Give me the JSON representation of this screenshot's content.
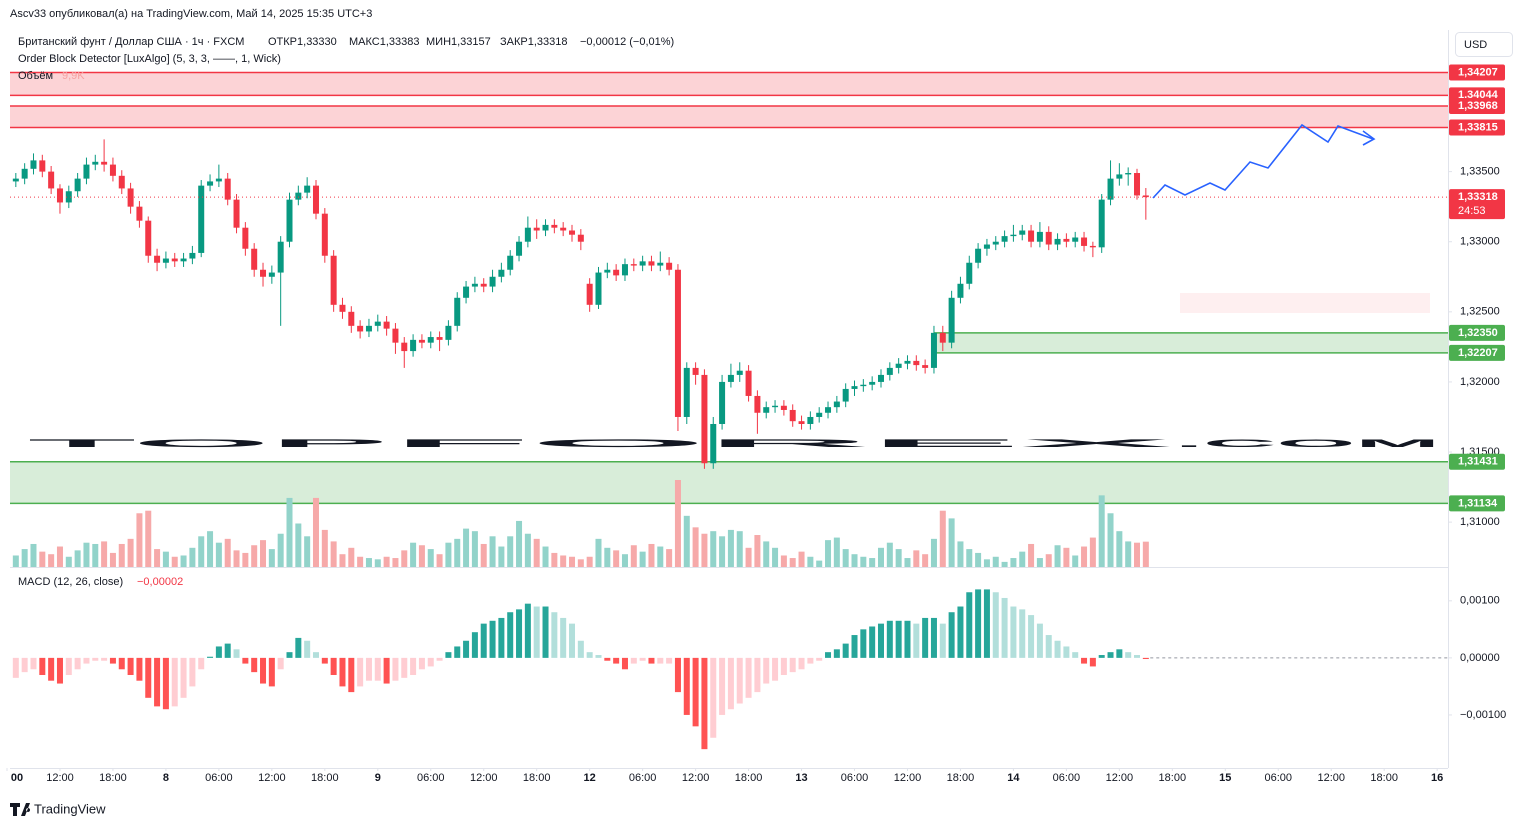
{
  "header": "Ascv33 опубликовал(а) на TradingView.com, Май 14, 2025 15:35 UTC+3",
  "currency": "USD",
  "brand": "TradingView",
  "watermark": {
    "parts": [
      "TOP",
      "FOREX",
      ".COM"
    ]
  },
  "chart_data": {
    "type": "candlestick",
    "title": "Британский фунт / Доллар США · 1ч · FXCM",
    "ohlc_legend": [
      "ОТКР1,33330",
      "МАКС1,33383",
      "МИН1,33157",
      "ЗАКР1,33318"
    ],
    "change_label": "−0,00012 (−0,01%)",
    "indicator": "Order Block Detector [LuxAlgo] (5, 3, 3, ——, 1, Wick)",
    "up_color": "#089981",
    "down_color": "#f23645",
    "xlim": [
      0,
      163
    ],
    "xticks": [
      {
        "value": 0,
        "label": "00"
      },
      {
        "value": 6,
        "label": "12:00"
      },
      {
        "value": 12,
        "label": "18:00"
      },
      {
        "value": 18,
        "label": "8"
      },
      {
        "value": 24,
        "label": "06:00"
      },
      {
        "value": 30,
        "label": "12:00"
      },
      {
        "value": 36,
        "label": "18:00"
      },
      {
        "value": 42,
        "label": "9"
      },
      {
        "value": 48,
        "label": "06:00"
      },
      {
        "value": 54,
        "label": "12:00"
      },
      {
        "value": 60,
        "label": "18:00"
      },
      {
        "value": 66,
        "label": "12"
      },
      {
        "value": 72,
        "label": "06:00"
      },
      {
        "value": 78,
        "label": "12:00"
      },
      {
        "value": 84,
        "label": "18:00"
      },
      {
        "value": 90,
        "label": "13"
      },
      {
        "value": 96,
        "label": "06:00"
      },
      {
        "value": 102,
        "label": "12:00"
      },
      {
        "value": 108,
        "label": "18:00"
      },
      {
        "value": 114,
        "label": "14"
      },
      {
        "value": 120,
        "label": "06:00"
      },
      {
        "value": 126,
        "label": "12:00"
      },
      {
        "value": 132,
        "label": "18:00"
      },
      {
        "value": 138,
        "label": "15"
      },
      {
        "value": 144,
        "label": "06:00"
      },
      {
        "value": 150,
        "label": "12:00"
      },
      {
        "value": 156,
        "label": "18:00"
      },
      {
        "value": 162,
        "label": "16"
      }
    ],
    "ylim": [
      1.3068,
      1.3451
    ],
    "yticks": [
      {
        "value": 1.335,
        "label": "1,33500"
      },
      {
        "value": 1.33,
        "label": "1,33000"
      },
      {
        "value": 1.325,
        "label": "1,32500"
      },
      {
        "value": 1.32,
        "label": "1,32000"
      },
      {
        "value": 1.315,
        "label": "1,31500"
      },
      {
        "value": 1.31,
        "label": "1,31000"
      }
    ],
    "grid": false,
    "open": [
      1.334,
      1.3343,
      1.3345,
      1.3352,
      1.3358,
      1.335,
      1.3338,
      1.3328,
      1.3336,
      1.3345,
      1.3355,
      1.3357,
      1.3355,
      1.3347,
      1.3338,
      1.3325,
      1.3315,
      1.329,
      1.3285,
      1.3288,
      1.3286,
      1.3288,
      1.3292,
      1.334,
      1.3343,
      1.3345,
      1.333,
      1.331,
      1.3295,
      1.328,
      1.3275,
      1.3278,
      1.33,
      1.333,
      1.3335,
      1.334,
      1.332,
      1.329,
      1.3255,
      1.325,
      1.324,
      1.3236,
      1.324,
      1.3243,
      1.3238,
      1.3228,
      1.3222,
      1.323,
      1.3228,
      1.3232,
      1.323,
      1.324,
      1.326,
      1.3268,
      1.327,
      1.3268,
      1.3275,
      1.328,
      1.329,
      1.33,
      1.331,
      1.3308,
      1.3312,
      1.331,
      1.3308,
      1.3305,
      1.327,
      1.3255,
      1.3278,
      1.328,
      1.3276,
      1.3284,
      1.3283,
      1.3286,
      1.3283,
      1.3285,
      1.328,
      1.3175,
      1.321,
      1.3205,
      1.3142,
      1.317,
      1.32,
      1.3205,
      1.3208,
      1.319,
      1.3178,
      1.3182,
      1.3183,
      1.318,
      1.3172,
      1.317,
      1.3175,
      1.3178,
      1.3182,
      1.3186,
      1.3195,
      1.3197,
      1.3198,
      1.32,
      1.3205,
      1.321,
      1.3213,
      1.3215,
      1.3212,
      1.321,
      1.3235,
      1.3228,
      1.326,
      1.327,
      1.3285,
      1.3295,
      1.3298,
      1.33,
      1.3304,
      1.3305,
      1.3308,
      1.33,
      1.3307,
      1.3298,
      1.3302,
      1.33,
      1.3303,
      1.3297,
      1.3296,
      1.333,
      1.3345,
      1.3348,
      1.3349,
      1.3333
    ],
    "high": [
      1.3348,
      1.3349,
      1.3356,
      1.3363,
      1.3362,
      1.3354,
      1.3341,
      1.334,
      1.3349,
      1.336,
      1.3362,
      1.3373,
      1.336,
      1.3351,
      1.3342,
      1.3329,
      1.3318,
      1.3295,
      1.3293,
      1.3292,
      1.3292,
      1.3297,
      1.3344,
      1.3348,
      1.3355,
      1.3349,
      1.3334,
      1.3314,
      1.3299,
      1.3285,
      1.3283,
      1.3304,
      1.3335,
      1.334,
      1.3346,
      1.3344,
      1.3324,
      1.3294,
      1.326,
      1.3254,
      1.3244,
      1.3245,
      1.3248,
      1.3247,
      1.3242,
      1.3232,
      1.3234,
      1.3234,
      1.3236,
      1.3236,
      1.3244,
      1.3264,
      1.3272,
      1.3275,
      1.3274,
      1.328,
      1.3285,
      1.3294,
      1.3304,
      1.3318,
      1.3316,
      1.3316,
      1.3316,
      1.3314,
      1.3312,
      1.3309,
      1.3274,
      1.3282,
      1.3285,
      1.3284,
      1.3288,
      1.3288,
      1.329,
      1.329,
      1.3293,
      1.3289,
      1.3284,
      1.3214,
      1.3214,
      1.3209,
      1.3175,
      1.3205,
      1.3213,
      1.3214,
      1.3212,
      1.3194,
      1.3186,
      1.3187,
      1.3187,
      1.3184,
      1.3176,
      1.3179,
      1.3182,
      1.3186,
      1.319,
      1.3199,
      1.3201,
      1.3202,
      1.3204,
      1.3209,
      1.3214,
      1.3217,
      1.3219,
      1.3219,
      1.3216,
      1.324,
      1.324,
      1.3265,
      1.3275,
      1.329,
      1.3299,
      1.3302,
      1.3304,
      1.3308,
      1.3312,
      1.3312,
      1.3312,
      1.3314,
      1.3311,
      1.3306,
      1.3306,
      1.3307,
      1.3307,
      1.33,
      1.3334,
      1.3358,
      1.3356,
      1.3353,
      1.3352,
      1.33383
    ],
    "low": [
      1.3336,
      1.3339,
      1.3341,
      1.3348,
      1.3346,
      1.3334,
      1.332,
      1.3324,
      1.3332,
      1.3341,
      1.3351,
      1.335,
      1.3343,
      1.3334,
      1.332,
      1.331,
      1.3285,
      1.3279,
      1.3281,
      1.3282,
      1.3282,
      1.3284,
      1.3289,
      1.3336,
      1.3339,
      1.3326,
      1.3306,
      1.329,
      1.3275,
      1.3268,
      1.327,
      1.324,
      1.3296,
      1.3326,
      1.3331,
      1.3316,
      1.3285,
      1.325,
      1.3245,
      1.3235,
      1.3231,
      1.3232,
      1.3236,
      1.3233,
      1.322,
      1.321,
      1.3218,
      1.3224,
      1.3224,
      1.3222,
      1.3226,
      1.3236,
      1.3256,
      1.3264,
      1.3264,
      1.3264,
      1.3271,
      1.3276,
      1.3286,
      1.3296,
      1.3302,
      1.3304,
      1.3306,
      1.3304,
      1.33,
      1.3294,
      1.325,
      1.3252,
      1.3274,
      1.3272,
      1.3272,
      1.3279,
      1.3279,
      1.3279,
      1.3279,
      1.3276,
      1.3165,
      1.317,
      1.3198,
      1.3138,
      1.3138,
      1.3166,
      1.3196,
      1.32,
      1.3186,
      1.3163,
      1.3174,
      1.3178,
      1.3176,
      1.3168,
      1.3166,
      1.3166,
      1.3171,
      1.3174,
      1.3178,
      1.3182,
      1.319,
      1.3193,
      1.3194,
      1.3196,
      1.3201,
      1.3206,
      1.3209,
      1.3208,
      1.3206,
      1.3206,
      1.3222,
      1.3224,
      1.3256,
      1.3266,
      1.3281,
      1.329,
      1.3294,
      1.3296,
      1.33,
      1.3301,
      1.3296,
      1.3296,
      1.3294,
      1.3294,
      1.3296,
      1.3296,
      1.3293,
      1.3289,
      1.3292,
      1.3326,
      1.334,
      1.334,
      1.333,
      1.33157
    ],
    "close": [
      1.3343,
      1.3345,
      1.3352,
      1.3358,
      1.335,
      1.3338,
      1.3328,
      1.3336,
      1.3345,
      1.3355,
      1.3357,
      1.3355,
      1.3347,
      1.3338,
      1.3325,
      1.3315,
      1.329,
      1.3285,
      1.3288,
      1.3286,
      1.3288,
      1.3292,
      1.334,
      1.3343,
      1.3345,
      1.333,
      1.331,
      1.3295,
      1.328,
      1.3275,
      1.3278,
      1.33,
      1.333,
      1.3335,
      1.334,
      1.332,
      1.329,
      1.3255,
      1.325,
      1.324,
      1.3236,
      1.324,
      1.3243,
      1.3238,
      1.3228,
      1.3222,
      1.323,
      1.3228,
      1.3232,
      1.323,
      1.324,
      1.326,
      1.3268,
      1.327,
      1.3268,
      1.3275,
      1.328,
      1.329,
      1.33,
      1.331,
      1.3308,
      1.3312,
      1.331,
      1.3308,
      1.3305,
      1.33,
      1.3255,
      1.3278,
      1.328,
      1.3276,
      1.3284,
      1.3283,
      1.3286,
      1.3283,
      1.3285,
      1.328,
      1.3175,
      1.321,
      1.3205,
      1.3142,
      1.317,
      1.32,
      1.3205,
      1.3208,
      1.319,
      1.3178,
      1.3182,
      1.3183,
      1.318,
      1.3172,
      1.317,
      1.3175,
      1.3178,
      1.3182,
      1.3186,
      1.3195,
      1.3197,
      1.3198,
      1.32,
      1.3205,
      1.321,
      1.3213,
      1.3215,
      1.3212,
      1.321,
      1.3235,
      1.3228,
      1.326,
      1.327,
      1.3285,
      1.3295,
      1.3298,
      1.33,
      1.3304,
      1.3305,
      1.3308,
      1.33,
      1.3307,
      1.3298,
      1.3302,
      1.33,
      1.3303,
      1.3297,
      1.3296,
      1.333,
      1.3345,
      1.3348,
      1.3349,
      1.3333,
      1.33318
    ],
    "last_price": {
      "label": "1,33318",
      "countdown": "24:53"
    },
    "order_blocks": [
      {
        "color": "#f23645",
        "start": 0,
        "top": {
          "value": 1.34207,
          "label": "1,34207"
        },
        "bottom": {
          "value": 1.34044,
          "label": "1,34044"
        }
      },
      {
        "color": "#f23645",
        "start": 0,
        "top": {
          "value": 1.33968,
          "label": "1,33968"
        },
        "bottom": {
          "value": 1.33815,
          "label": "1,33815"
        }
      },
      {
        "color": "#4caf50",
        "start": 105,
        "top": {
          "value": 1.3235,
          "label": "1,32350"
        },
        "bottom": {
          "value": 1.32207,
          "label": "1,32207"
        }
      },
      {
        "color": "#4caf50",
        "start": 0,
        "top": {
          "value": 1.31431,
          "label": "1,31431"
        },
        "bottom": {
          "value": 1.31134,
          "label": "1,31134"
        }
      }
    ],
    "volume": {
      "name": "Объём",
      "last_label": "9,9K",
      "up_color": "#92d3ca",
      "down_color": "#f6a9a9",
      "values": [
        3000,
        4500,
        7000,
        9000,
        6000,
        5000,
        8000,
        4000,
        6500,
        9500,
        9000,
        10000,
        5500,
        9000,
        11000,
        21000,
        22000,
        7000,
        6000,
        4000,
        4500,
        7500,
        12000,
        14000,
        9500,
        11000,
        6500,
        5500,
        8500,
        10500,
        7000,
        13000,
        27000,
        17000,
        12000,
        27000,
        14500,
        10000,
        5000,
        7500,
        4000,
        3500,
        3000,
        4000,
        3500,
        6500,
        9500,
        8500,
        7000,
        5000,
        9500,
        11000,
        15000,
        14000,
        9000,
        12000,
        8000,
        12000,
        18000,
        13000,
        11000,
        8000,
        5500,
        4500,
        4000,
        3000,
        4000,
        11000,
        7500,
        6500,
        5000,
        8500,
        6000,
        9000,
        8000,
        7000,
        34000,
        20000,
        15500,
        13000,
        14000,
        12000,
        14500,
        14000,
        7500,
        12500,
        10000,
        7500,
        4500,
        3500,
        6000,
        4000,
        2500,
        10500,
        11500,
        7000,
        5000,
        4000,
        3500,
        7500,
        9500,
        7000,
        3500,
        6500,
        5000,
        11000,
        22000,
        19000,
        10000,
        7000,
        5500,
        3000,
        4000,
        2000,
        3500,
        6000,
        9000,
        3500,
        5000,
        8500,
        7500,
        4500,
        8000,
        11500,
        28000,
        21000,
        14000,
        10000,
        9500,
        9900
      ]
    },
    "macd": {
      "name": "MACD (12, 26, close)",
      "last_label": "−0,00002",
      "ylim": [
        -0.00193,
        0.00154
      ],
      "yticks": [
        {
          "value": 0.001,
          "label": "0,00100"
        },
        {
          "value": 0,
          "label": "0,00000"
        },
        {
          "value": -0.001,
          "label": "−0,00100"
        }
      ],
      "colors": [
        "#26a69a",
        "#b2dfdb",
        "#ffcdd2",
        "#ff5252"
      ],
      "values": [
        -0.00055,
        -0.00035,
        -0.00025,
        -0.0002,
        -0.0003,
        -0.0004,
        -0.00045,
        -0.0003,
        -0.0002,
        -0.0001,
        -5e-05,
        -5e-05,
        -0.0001,
        -0.0002,
        -0.0003,
        -0.0004,
        -0.0007,
        -0.00085,
        -0.0009,
        -0.00085,
        -0.0007,
        -0.0005,
        -0.0002,
        2e-05,
        0.0002,
        0.00025,
        0.00015,
        -0.0001,
        -0.00025,
        -0.00045,
        -0.0005,
        -0.0002,
        0.0001,
        0.00035,
        0.0003,
        0.0001,
        -0.0001,
        -0.0003,
        -0.0005,
        -0.0006,
        -0.0005,
        -0.0004,
        -0.0004,
        -0.00045,
        -0.0004,
        -0.00035,
        -0.0003,
        -0.0002,
        -0.00015,
        -5e-05,
        0.0001,
        0.0002,
        0.0003,
        0.00045,
        0.0006,
        0.00065,
        0.0007,
        0.0008,
        0.00085,
        0.00095,
        0.0009,
        0.0009,
        0.0008,
        0.0007,
        0.0006,
        0.0003,
        0.0001,
        5e-05,
        -5e-05,
        -0.0001,
        -0.0002,
        -0.0001,
        -5e-05,
        -0.0001,
        -0.0001,
        -0.0001,
        -0.0006,
        -0.001,
        -0.0012,
        -0.0016,
        -0.0014,
        -0.001,
        -0.0009,
        -0.0008,
        -0.0007,
        -0.0006,
        -0.00045,
        -0.0004,
        -0.0003,
        -0.00025,
        -0.0002,
        -0.0001,
        -5e-05,
        0.0001,
        0.00015,
        0.00025,
        0.0004,
        0.0005,
        0.00055,
        0.0006,
        0.00065,
        0.00065,
        0.00065,
        0.0006,
        0.0007,
        0.0007,
        0.0006,
        0.0008,
        0.0009,
        0.00115,
        0.0012,
        0.0012,
        0.00115,
        0.00105,
        0.0009,
        0.00085,
        0.00075,
        0.0006,
        0.0004,
        0.0003,
        0.0002,
        0.0001,
        -0.0001,
        -0.00015,
        5e-05,
        0.0001,
        0.00015,
        0.0001,
        5e-05,
        -2e-05
      ]
    }
  }
}
